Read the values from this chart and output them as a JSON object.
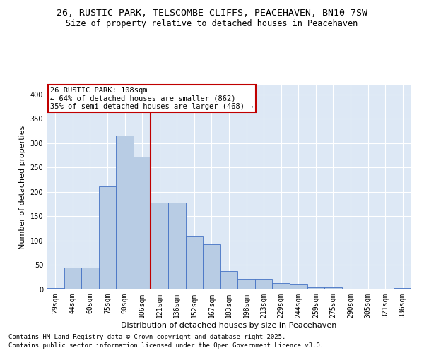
{
  "title1": "26, RUSTIC PARK, TELSCOMBE CLIFFS, PEACEHAVEN, BN10 7SW",
  "title2": "Size of property relative to detached houses in Peacehaven",
  "xlabel": "Distribution of detached houses by size in Peacehaven",
  "ylabel": "Number of detached properties",
  "categories": [
    "29sqm",
    "44sqm",
    "60sqm",
    "75sqm",
    "90sqm",
    "106sqm",
    "121sqm",
    "136sqm",
    "152sqm",
    "167sqm",
    "183sqm",
    "198sqm",
    "213sqm",
    "229sqm",
    "244sqm",
    "259sqm",
    "275sqm",
    "290sqm",
    "305sqm",
    "321sqm",
    "336sqm"
  ],
  "values": [
    3,
    45,
    45,
    212,
    315,
    272,
    178,
    178,
    110,
    92,
    38,
    22,
    22,
    13,
    11,
    5,
    5,
    1,
    1,
    1,
    3
  ],
  "bar_color": "#b8cce4",
  "bar_edge_color": "#4472c4",
  "vline_x_index": 5,
  "vline_color": "#c00000",
  "annotation_text": "26 RUSTIC PARK: 108sqm\n← 64% of detached houses are smaller (862)\n35% of semi-detached houses are larger (468) →",
  "annotation_box_color": "#c00000",
  "ylim": [
    0,
    420
  ],
  "yticks": [
    0,
    50,
    100,
    150,
    200,
    250,
    300,
    350,
    400
  ],
  "bg_color": "#dde8f5",
  "grid_color": "#ffffff",
  "footnote1": "Contains HM Land Registry data © Crown copyright and database right 2025.",
  "footnote2": "Contains public sector information licensed under the Open Government Licence v3.0.",
  "title1_fontsize": 9.5,
  "title2_fontsize": 8.5,
  "xlabel_fontsize": 8,
  "ylabel_fontsize": 8,
  "tick_fontsize": 7,
  "annot_fontsize": 7.5,
  "footnote_fontsize": 6.5
}
